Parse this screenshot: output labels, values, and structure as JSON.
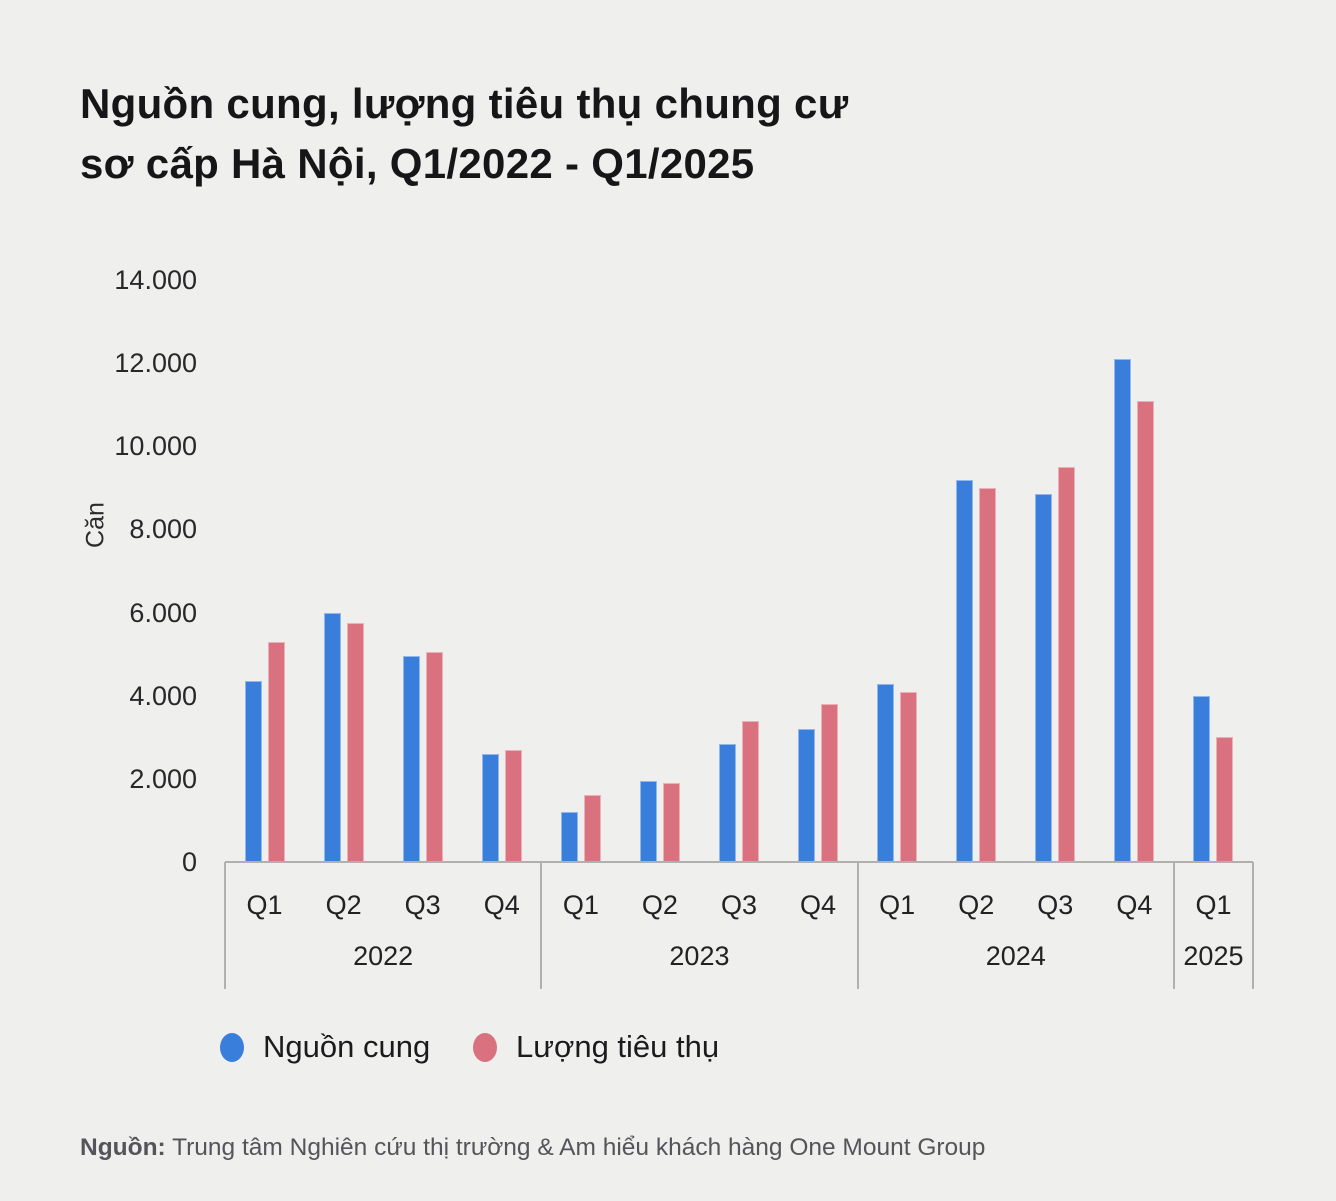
{
  "title": {
    "line1": "Nguồn cung, lượng tiêu thụ chung cư",
    "line2": "sơ cấp Hà Nội, Q1/2022 - Q1/2025"
  },
  "y_axis": {
    "label": "Căn",
    "max": 14000,
    "step": 2000,
    "ticks": [
      "14.000",
      "12.000",
      "10.000",
      "8.000",
      "6.000",
      "4.000",
      "2.000",
      "0"
    ]
  },
  "x_axis": {
    "quarters": [
      "Q1",
      "Q2",
      "Q3",
      "Q4",
      "Q1",
      "Q2",
      "Q3",
      "Q4",
      "Q1",
      "Q2",
      "Q3",
      "Q4",
      "Q1"
    ],
    "year_groups": [
      {
        "label": "2022",
        "quarters": 4
      },
      {
        "label": "2023",
        "quarters": 4
      },
      {
        "label": "2024",
        "quarters": 4
      },
      {
        "label": "2025",
        "quarters": 1
      }
    ]
  },
  "chart_data": {
    "type": "bar",
    "title": "Nguồn cung, lượng tiêu thụ chung cư sơ cấp Hà Nội, Q1/2022 - Q1/2025",
    "categories": [
      "Q1/2022",
      "Q2/2022",
      "Q3/2022",
      "Q4/2022",
      "Q1/2023",
      "Q2/2023",
      "Q3/2023",
      "Q4/2023",
      "Q1/2024",
      "Q2/2024",
      "Q3/2024",
      "Q4/2024",
      "Q1/2025"
    ],
    "series": [
      {
        "name": "Nguồn cung",
        "key": "supply",
        "color": "#3A7EDB",
        "values": [
          4350,
          6000,
          4950,
          2600,
          1200,
          1950,
          2850,
          3200,
          4270,
          9200,
          8850,
          12100,
          4000
        ]
      },
      {
        "name": "Lượng tiêu thụ",
        "key": "sales",
        "color": "#DA717F",
        "values": [
          5300,
          5750,
          5050,
          2700,
          1600,
          1900,
          3400,
          3800,
          4100,
          9000,
          9500,
          11100,
          3000
        ]
      }
    ],
    "xlabel": "",
    "ylabel": "Căn",
    "ylim": [
      0,
      14000
    ],
    "grid": false,
    "legend_position": "bottom"
  },
  "legend": {
    "items": [
      {
        "label": "Nguồn cung",
        "color": "#3A7EDB"
      },
      {
        "label": "Lượng tiêu thụ",
        "color": "#DA717F"
      }
    ]
  },
  "source": {
    "prefix": "Nguồn:",
    "text": "Trung tâm Nghiên cứu thị trường & Am hiểu khách hàng One Mount Group"
  },
  "colors": {
    "background": "#EFEFED",
    "axis_line": "#B1B0AE",
    "bar_supply": "#3A7EDB",
    "bar_sales": "#DA717F",
    "text_dark": "#1C1C1E",
    "text_gray": "#55545A"
  }
}
